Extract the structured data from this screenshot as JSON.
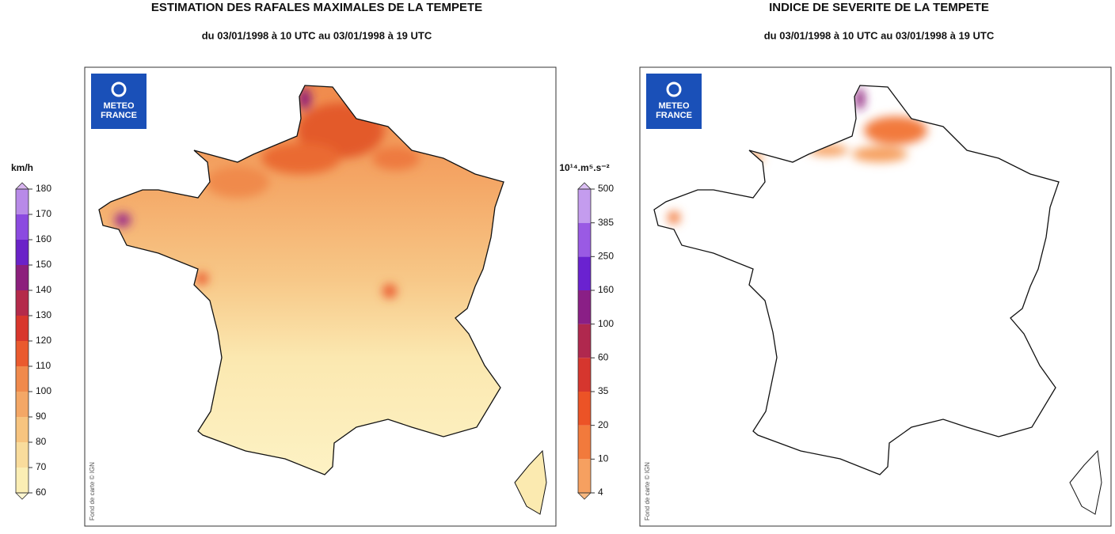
{
  "panels": [
    {
      "title": "ESTIMATION DES RAFALES MAXIMALES DE LA TEMPETE",
      "subtitle": "du 03/01/1998 à 10 UTC au 03/01/1998 à 19 UTC",
      "logo": [
        "METEO",
        "FRANCE"
      ],
      "credit": "Fond de carte © IGN",
      "legend": {
        "unit": "km/h",
        "ticks": [
          60,
          70,
          80,
          90,
          100,
          110,
          120,
          130,
          140,
          150,
          160,
          170,
          180
        ],
        "colors": [
          "#fbeeb4",
          "#f9dc9c",
          "#f7c47f",
          "#f4a766",
          "#f08a4c",
          "#ea5a2e",
          "#d8362c",
          "#b42a4a",
          "#8c1f7c",
          "#6a22c8",
          "#8b4ae0",
          "#b88ae8"
        ],
        "end_colors": [
          "#fdf6d0",
          "#d8b5f0"
        ]
      }
    },
    {
      "title": "INDICE DE SEVERITE DE LA TEMPETE",
      "subtitle": "du 03/01/1998 à 10 UTC au 03/01/1998 à 19 UTC",
      "logo": [
        "METEO",
        "FRANCE"
      ],
      "credit": "Fond de carte © IGN",
      "legend": {
        "unit": "10¹⁴.m⁵.s⁻²",
        "ticks": [
          4,
          10,
          20,
          35,
          60,
          100,
          160,
          250,
          385,
          500
        ],
        "colors": [
          "#f6a060",
          "#f27a3c",
          "#ec5326",
          "#d6362e",
          "#b0284e",
          "#8a1f86",
          "#6a22d0",
          "#9a5ae4",
          "#c49cee"
        ],
        "end_colors": [
          "#f8b880",
          "#dcc0f4"
        ]
      }
    }
  ]
}
